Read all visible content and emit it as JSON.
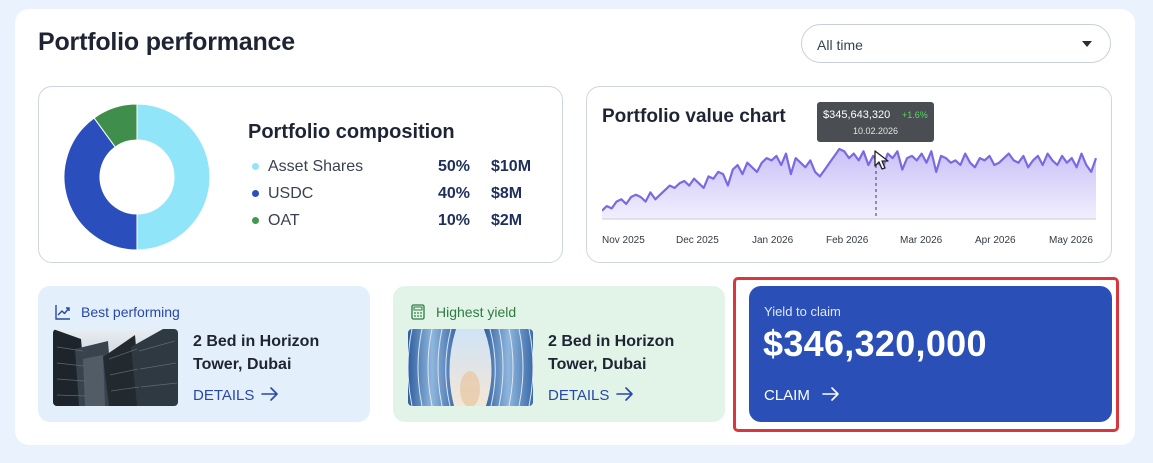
{
  "header": {
    "title": "Portfolio performance",
    "range_select": "All time"
  },
  "composition": {
    "title": "Portfolio composition",
    "items": [
      {
        "name": "Asset Shares",
        "pct": "50%",
        "amount": "$10M",
        "color": "#90e5f8",
        "share": 0.5
      },
      {
        "name": "USDC",
        "pct": "40%",
        "amount": "$8M",
        "color": "#2a4fbd",
        "share": 0.4
      },
      {
        "name": "OAT",
        "pct": "10%",
        "amount": "$2M",
        "color": "#3f8e4c",
        "share": 0.1
      }
    ]
  },
  "value_chart": {
    "title": "Portfolio value chart",
    "tooltip": {
      "value": "$345,643,320",
      "change": "+1.6%",
      "date": "10.02.2026"
    },
    "x_ticks": [
      "Nov 2025",
      "Dec 2025",
      "Jan 2026",
      "Feb 2026",
      "Mar 2026",
      "Apr 2026",
      "May 2026"
    ]
  },
  "chart_data": {
    "type": "area",
    "title": "Portfolio value chart",
    "x_start": "Nov 2025",
    "x_end": "May 2026",
    "values": [
      1,
      3,
      2,
      5,
      6,
      4,
      7,
      8,
      7,
      5,
      9,
      6,
      8,
      10,
      12,
      11,
      13,
      14,
      12,
      15,
      13,
      11,
      16,
      15,
      18,
      17,
      12,
      19,
      21,
      17,
      22,
      20,
      18,
      22,
      24,
      23,
      25,
      21,
      26,
      17,
      24,
      22,
      20,
      23,
      18,
      16,
      19,
      22,
      25,
      28,
      27,
      24,
      26,
      23,
      27,
      21,
      25,
      22,
      20,
      26,
      24,
      27,
      19,
      24,
      25,
      23,
      26,
      22,
      27,
      18,
      25,
      24,
      22,
      23,
      21,
      26,
      22,
      20,
      24,
      23,
      25,
      21,
      22,
      24,
      26,
      23,
      22,
      25,
      20,
      23,
      25,
      21,
      26,
      23,
      21,
      25,
      22,
      24,
      20,
      26,
      21,
      18,
      24
    ],
    "highlight": {
      "x_label": "10.02.2026",
      "value": "$345,643,320",
      "change": "+1.6%"
    },
    "fill_color": "#ddd8fb",
    "line_color": "#7c68e3"
  },
  "best": {
    "label": "Best performing",
    "property": "2 Bed in Horizon Tower, Dubai",
    "details": "DETAILS"
  },
  "highest": {
    "label": "Highest yield",
    "property": "2 Bed in Horizon Tower, Dubai",
    "details": "DETAILS"
  },
  "yield": {
    "label": "Yield to claim",
    "value": "$346,320,000",
    "action": "CLAIM"
  },
  "colors": {
    "accent": "#2a50b8",
    "highlight_border": "#d9363e"
  }
}
